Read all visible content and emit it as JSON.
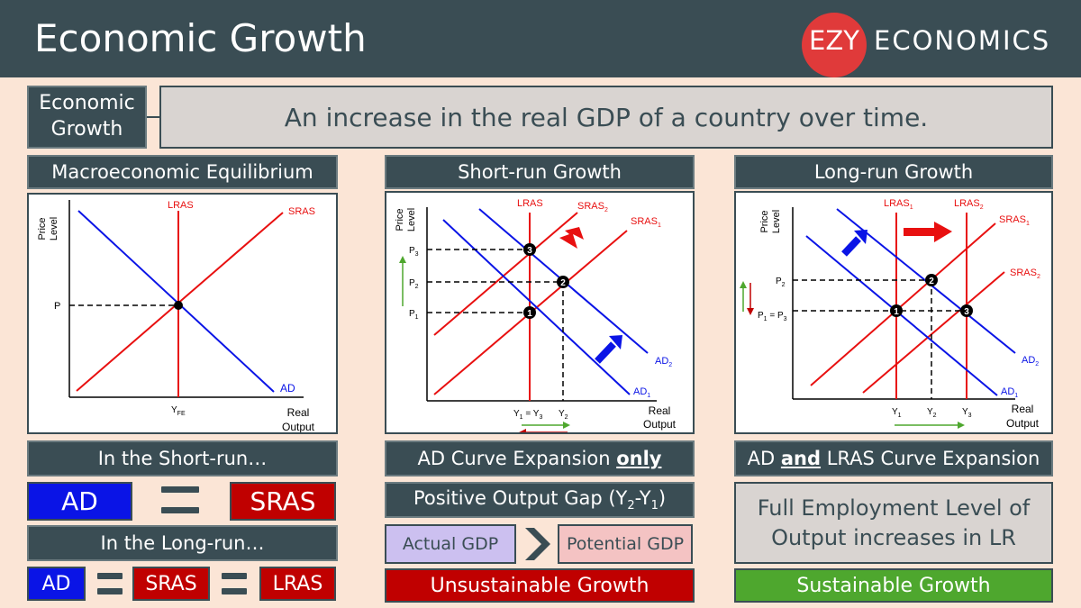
{
  "header": {
    "title": "Economic Growth",
    "logo_left": "EZY",
    "logo_right": "ECONOMICS"
  },
  "definition": {
    "term": "Economic Growth",
    "text": "An increase in the real GDP of a country over time."
  },
  "colors": {
    "dark": "#3a4d54",
    "background": "#fbe5d6",
    "ad_blue": "#0a14e6",
    "supply_red": "#e81010",
    "logo_red": "#e03a3a",
    "sustainable_green": "#4ea72e",
    "unsustainable_red": "#c00000",
    "actual_gdp": "#ccc0f0",
    "potential_gdp": "#f4c3c3"
  },
  "panel1": {
    "heading": "Macroeconomic Equilibrium",
    "diagram": {
      "y_label_1": "Price",
      "y_label_2": "Level",
      "x_label_1": "Real",
      "x_label_2": "Output",
      "lras": "LRAS",
      "sras": "SRAS",
      "ad": "AD",
      "p": "P",
      "yfe_main": "Y",
      "yfe_sub": "FE"
    },
    "short_run_heading": "In the Short-run…",
    "sr_ad": "AD",
    "sr_sras": "SRAS",
    "long_run_heading": "In the Long-run…",
    "lr_ad": "AD",
    "lr_sras": "SRAS",
    "lr_lras": "LRAS"
  },
  "panel2": {
    "heading": "Short-run Growth",
    "diagram": {
      "y_label_1": "Price",
      "y_label_2": "Level",
      "x_label_1": "Real",
      "x_label_2": "Output",
      "lras": "LRAS",
      "sras2": "SRAS",
      "sras2_sub": "2",
      "sras1": "SRAS",
      "sras1_sub": "1",
      "ad2": "AD",
      "ad2_sub": "2",
      "ad1": "AD",
      "ad1_sub": "1",
      "p3": "P",
      "p3_sub": "3",
      "p2": "P",
      "p2_sub": "2",
      "p1": "P",
      "p1_sub": "1",
      "y1": "Y",
      "y1_sub": "1",
      "eq_sign": " = ",
      "y3": "Y",
      "y3_sub": "3",
      "y2": "Y",
      "y2_sub": "2",
      "pt1": "1",
      "pt2": "2",
      "pt3": "3"
    },
    "expansion_pre": "AD Curve Expansion ",
    "expansion_only": "only",
    "gap_pre": "Positive Output Gap (Y",
    "gap_sub2": "2",
    "gap_mid": "-Y",
    "gap_sub1": "1",
    "gap_post": ")",
    "actual_gdp": "Actual GDP",
    "potential_gdp": "Potential GDP",
    "verdict": "Unsustainable Growth"
  },
  "panel3": {
    "heading": "Long-run Growth",
    "diagram": {
      "y_label_1": "Price",
      "y_label_2": "Level",
      "x_label_1": "Real",
      "x_label_2": "Output",
      "lras1": "LRAS",
      "lras1_sub": "1",
      "lras2": "LRAS",
      "lras2_sub": "2",
      "sras1": "SRAS",
      "sras1_sub": "1",
      "sras2": "SRAS",
      "sras2_sub": "2",
      "ad2": "AD",
      "ad2_sub": "2",
      "ad1": "AD",
      "ad1_sub": "1",
      "p2": "P",
      "p2_sub": "2",
      "p13_a": "P",
      "p13_a_sub": "1",
      "p13_eq": " = P",
      "p13_b_sub": "3",
      "y1": "Y",
      "y1_sub": "1",
      "y2": "Y",
      "y2_sub": "2",
      "y3": "Y",
      "y3_sub": "3",
      "pt1": "1",
      "pt2": "2",
      "pt3": "3"
    },
    "expansion_pre": "AD ",
    "expansion_and": "and",
    "expansion_post": " LRAS Curve Expansion",
    "full_employment": "Full Employment Level of Output increases in LR",
    "verdict": "Sustainable Growth"
  }
}
